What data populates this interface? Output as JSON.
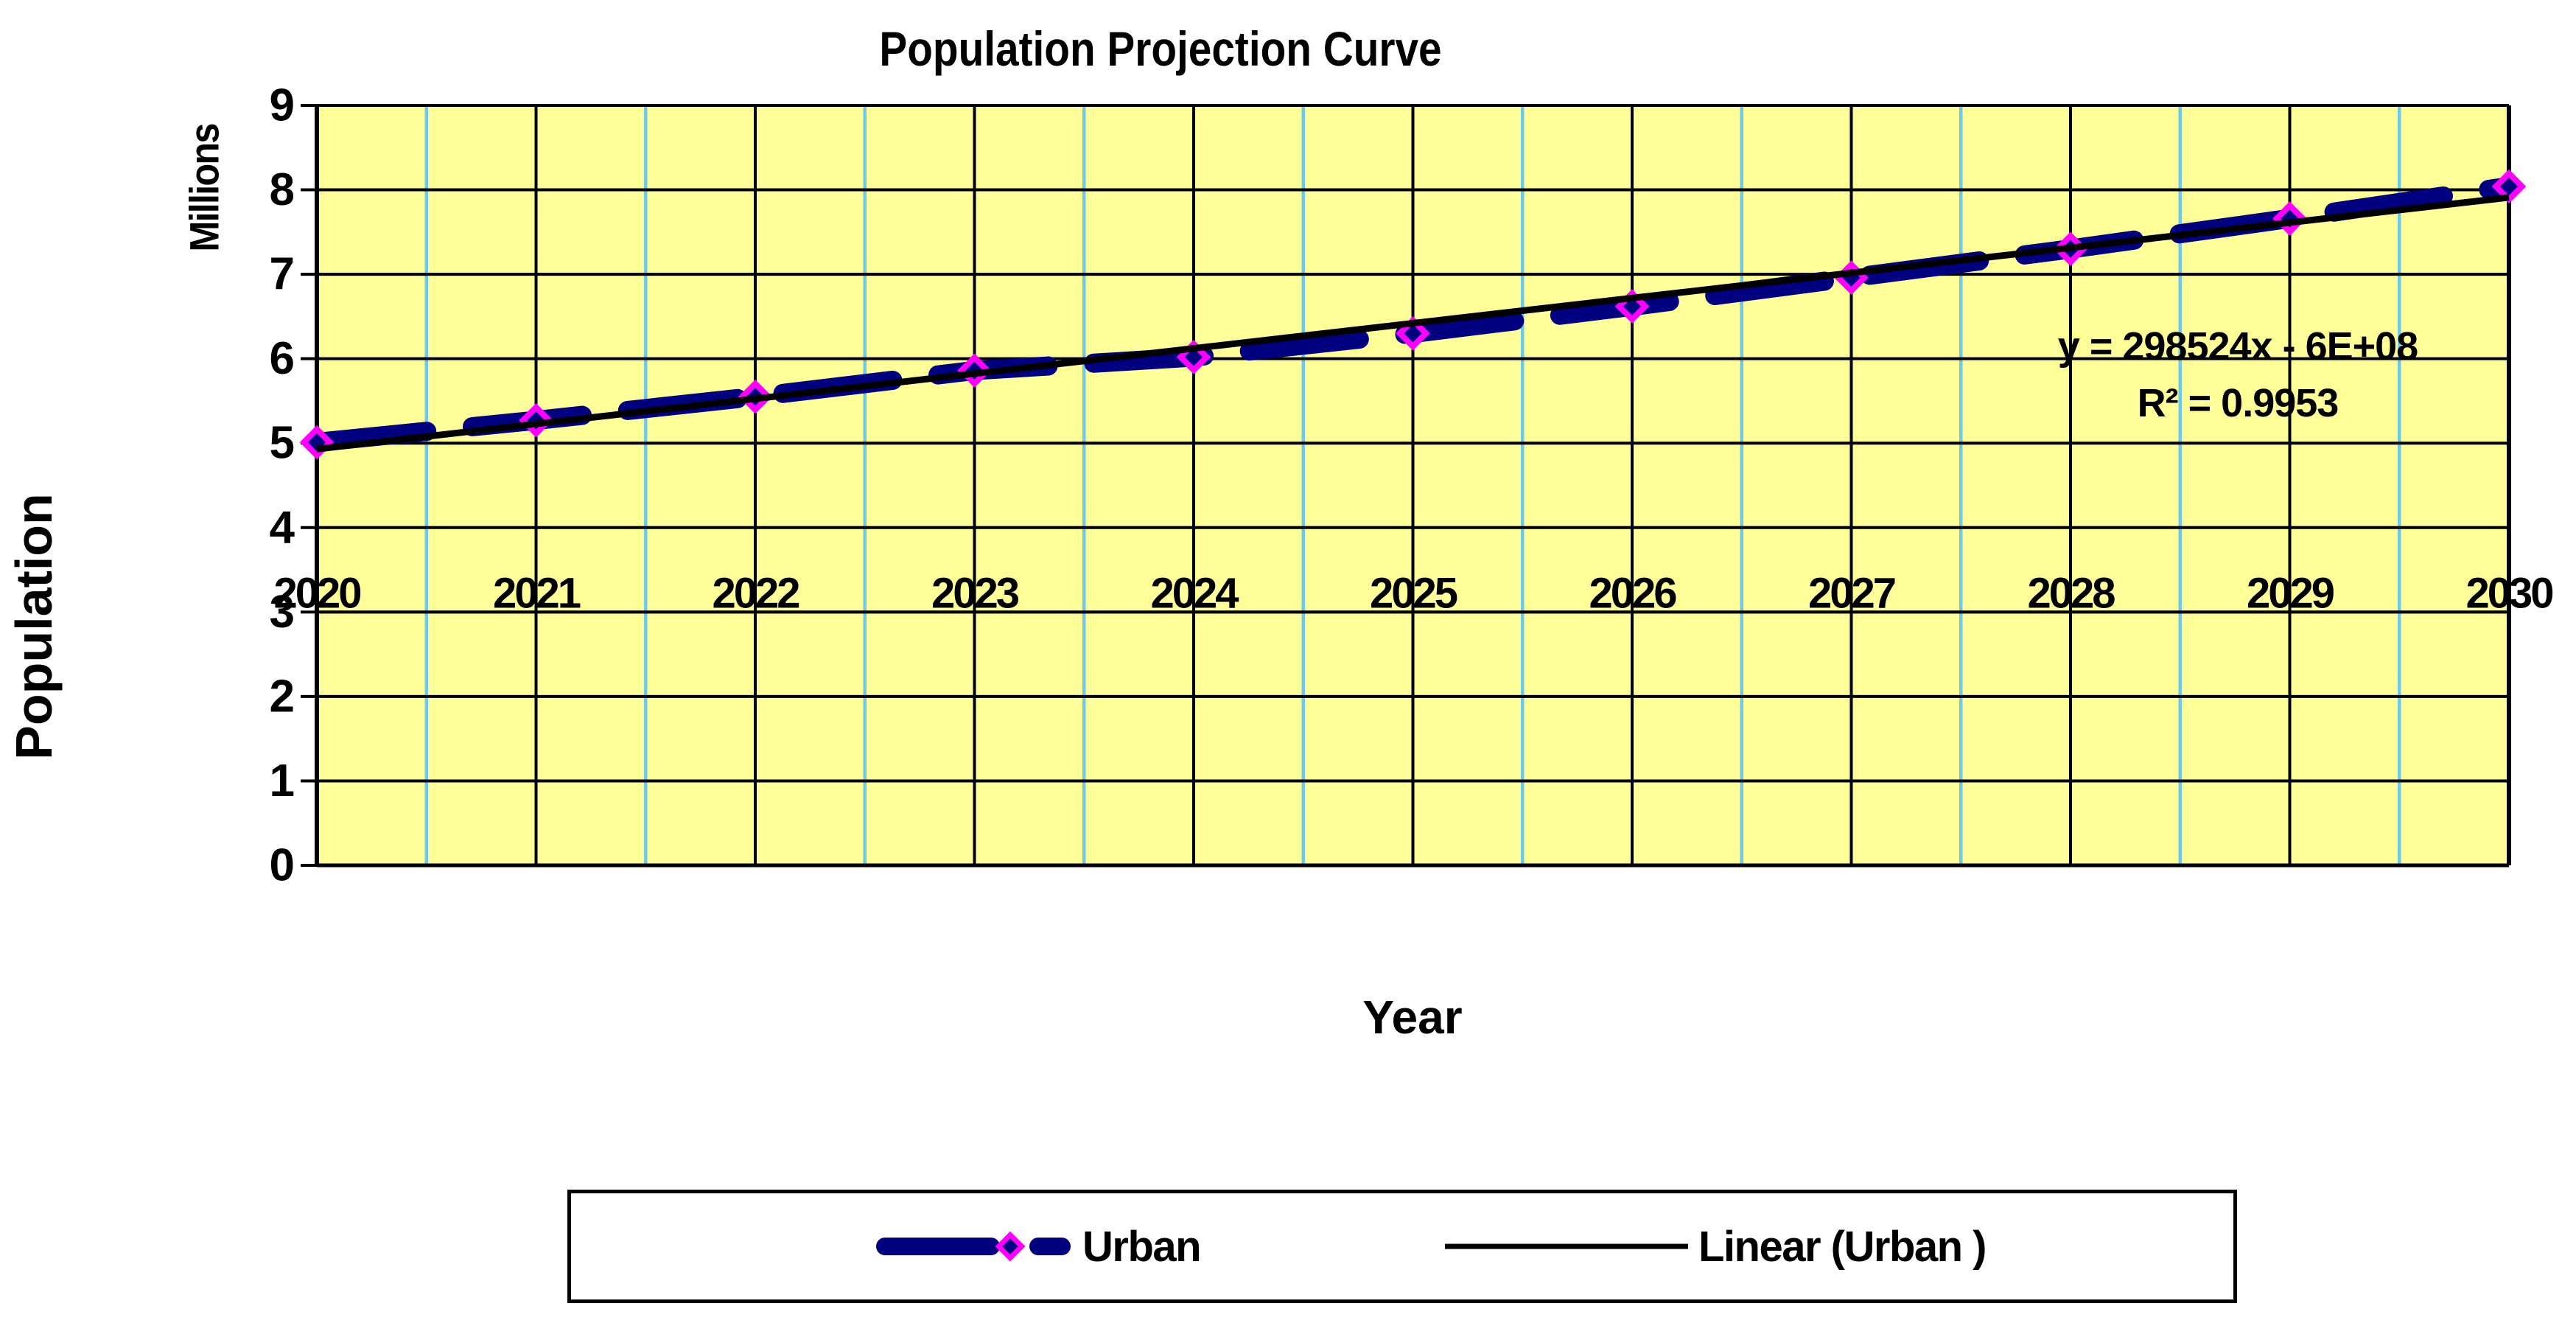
{
  "chart": {
    "x_axis_title": "Year",
    "y_axis_title": "Population",
    "y_axis_unit_label": "Millions"
  },
  "chart_data": {
    "type": "line",
    "title": "Population Projection Curve",
    "xlabel": "Year",
    "ylabel": "Population (Millions)",
    "x": [
      2020,
      2021,
      2022,
      2023,
      2024,
      2025,
      2026,
      2027,
      2028,
      2029,
      2030
    ],
    "xticks": [
      "2020",
      "2021",
      "2022",
      "2023",
      "2024",
      "2025",
      "2026",
      "2027",
      "2028",
      "2029",
      "2030"
    ],
    "series": [
      {
        "name": "Urban",
        "values": [
          5.01,
          5.27,
          5.55,
          5.86,
          6.02,
          6.3,
          6.62,
          6.96,
          7.3,
          7.66,
          8.04
        ],
        "color": "#000080",
        "line_style": "dashed",
        "marker": "diamond",
        "marker_fill": "#000080",
        "marker_border": "#FF00FF"
      }
    ],
    "trendline": {
      "name": "Linear (Urban )",
      "type": "linear",
      "x_range": [
        2020,
        2030
      ],
      "y_endpoints": [
        4.93,
        7.91
      ],
      "color": "#000000",
      "equation": "y = 298524x - 6E+08",
      "r_squared_label": "R² = 0.9953"
    },
    "ylim": [
      0,
      9
    ],
    "yticks": [
      0,
      1,
      2,
      3,
      4,
      5,
      6,
      7,
      8,
      9
    ],
    "category_axis_crosses_at": 3,
    "grid": true,
    "legend_position": "bottom",
    "colors": {
      "plot_bg": "#FFFF99",
      "major_grid": "#000000",
      "minor_grid": "#70C8E8",
      "axis": "#000000"
    }
  },
  "legend": {
    "items": [
      {
        "label": "Urban"
      },
      {
        "label": "Linear (Urban )"
      }
    ]
  }
}
